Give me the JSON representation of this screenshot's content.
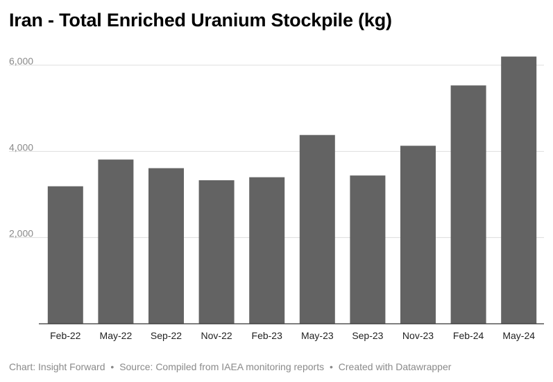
{
  "title": "Iran - Total Enriched Uranium Stockpile (kg)",
  "footer": {
    "credit": "Chart: Insight Forward",
    "source": "Source: Compiled from IAEA monitoring reports",
    "tool": "Created with Datawrapper",
    "separator": "•"
  },
  "colors": {
    "bar": "#636363",
    "grid": "#dddddd",
    "baseline": "#333333",
    "tick_text": "#8a8a8a",
    "category_text": "#222222"
  },
  "chart_data": {
    "type": "bar",
    "title": "Iran - Total Enriched Uranium Stockpile (kg)",
    "xlabel": "",
    "ylabel": "",
    "categories": [
      "Feb-22",
      "May-22",
      "Sep-22",
      "Nov-22",
      "Feb-23",
      "May-23",
      "Sep-23",
      "Nov-23",
      "Feb-24",
      "May-24"
    ],
    "values": [
      3190,
      3810,
      3610,
      3330,
      3400,
      4380,
      3440,
      4130,
      5530,
      6200
    ],
    "ylim": [
      0,
      6000
    ],
    "y_ticks": [
      2000,
      4000,
      6000
    ],
    "y_tick_labels": [
      "2,000",
      "4,000",
      "6,000"
    ],
    "grid": true,
    "legend": "none"
  }
}
